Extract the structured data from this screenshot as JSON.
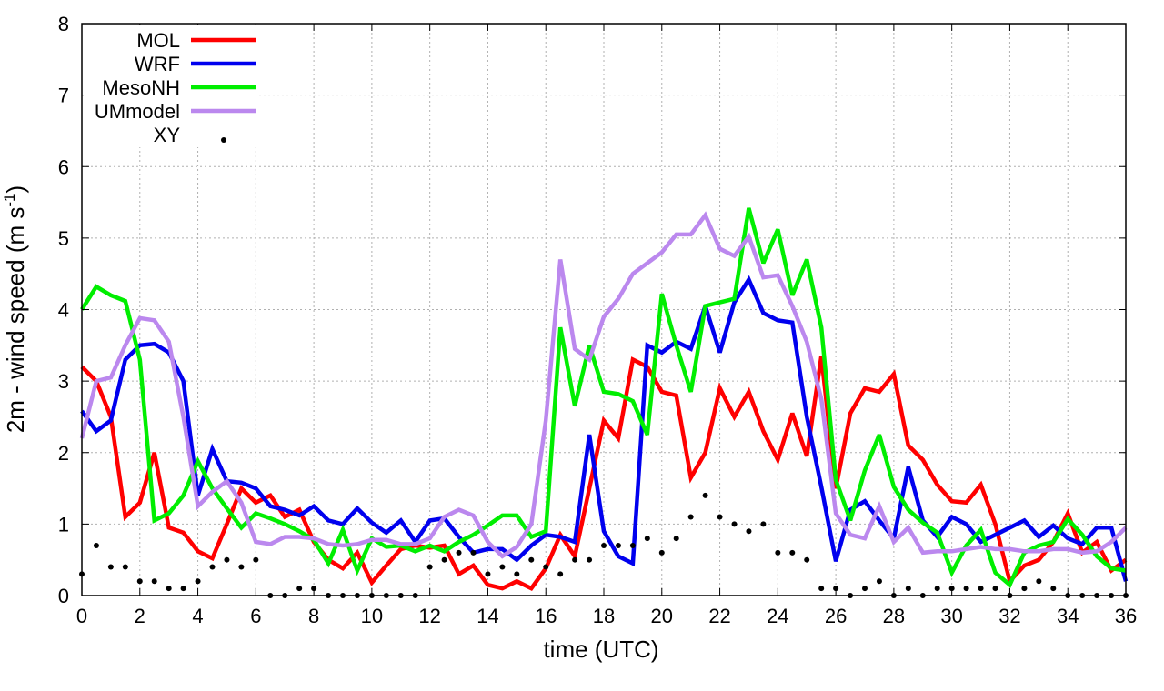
{
  "chart_data": {
    "type": "line",
    "xlabel": "time (UTC)",
    "ylabel_main": "2m - wind speed  (m s",
    "ylabel_sup": "-1",
    "ylabel_close": ")",
    "xlim": [
      0,
      36
    ],
    "ylim": [
      0,
      8
    ],
    "xticks": [
      0,
      2,
      4,
      6,
      8,
      10,
      12,
      14,
      16,
      18,
      20,
      22,
      24,
      26,
      28,
      30,
      32,
      34,
      36
    ],
    "yticks": [
      0,
      1,
      2,
      3,
      4,
      5,
      6,
      7,
      8
    ],
    "grid": true,
    "legend_position": "top-left",
    "x": [
      0,
      0.5,
      1,
      1.5,
      2,
      2.5,
      3,
      3.5,
      4,
      4.5,
      5,
      5.5,
      6,
      6.5,
      7,
      7.5,
      8,
      8.5,
      9,
      9.5,
      10,
      10.5,
      11,
      11.5,
      12,
      12.5,
      13,
      13.5,
      14,
      14.5,
      15,
      15.5,
      16,
      16.5,
      17,
      17.5,
      18,
      18.5,
      19,
      19.5,
      20,
      20.5,
      21,
      21.5,
      22,
      22.5,
      23,
      23.5,
      24,
      24.5,
      25,
      25.5,
      26,
      26.5,
      27,
      27.5,
      28,
      28.5,
      29,
      29.5,
      30,
      30.5,
      31,
      31.5,
      32,
      32.5,
      33,
      33.5,
      34,
      34.5,
      35,
      35.5,
      36
    ],
    "series": [
      {
        "name": "MOL",
        "color": "#ff0000",
        "style": "line",
        "values": [
          3.2,
          3.0,
          2.5,
          1.1,
          1.3,
          2.0,
          0.95,
          0.88,
          0.62,
          0.52,
          1.0,
          1.5,
          1.3,
          1.4,
          1.1,
          1.2,
          0.75,
          0.5,
          0.38,
          0.6,
          0.18,
          0.42,
          0.65,
          0.7,
          0.67,
          0.7,
          0.3,
          0.42,
          0.15,
          0.1,
          0.2,
          0.1,
          0.38,
          0.85,
          0.55,
          1.5,
          2.45,
          2.2,
          3.3,
          3.2,
          2.85,
          2.8,
          1.65,
          2.0,
          2.9,
          2.5,
          2.85,
          2.3,
          1.9,
          2.55,
          1.95,
          3.35,
          1.5,
          2.55,
          2.9,
          2.85,
          3.1,
          2.1,
          1.9,
          1.55,
          1.32,
          1.3,
          1.55,
          1.0,
          0.2,
          0.42,
          0.5,
          0.75,
          1.15,
          0.6,
          0.75,
          0.35,
          0.5
        ]
      },
      {
        "name": "WRF",
        "color": "#0000ee",
        "style": "line",
        "values": [
          2.58,
          2.3,
          2.45,
          3.3,
          3.5,
          3.52,
          3.4,
          3.0,
          1.4,
          2.05,
          1.6,
          1.58,
          1.5,
          1.25,
          1.2,
          1.12,
          1.25,
          1.05,
          1.0,
          1.22,
          1.02,
          0.88,
          1.05,
          0.75,
          1.05,
          1.08,
          0.82,
          0.6,
          0.65,
          0.65,
          0.5,
          0.7,
          0.85,
          0.82,
          0.75,
          2.25,
          0.9,
          0.55,
          0.45,
          3.5,
          3.4,
          3.55,
          3.45,
          4.05,
          3.4,
          4.1,
          4.42,
          3.95,
          3.85,
          3.82,
          2.5,
          1.52,
          0.48,
          1.2,
          1.32,
          1.05,
          0.8,
          1.8,
          1.05,
          0.82,
          1.1,
          1.0,
          0.75,
          0.85,
          0.95,
          1.05,
          0.82,
          0.98,
          0.8,
          0.72,
          0.95,
          0.95,
          0.2
        ]
      },
      {
        "name": "MesoNH",
        "color": "#00ee00",
        "style": "line",
        "values": [
          4.0,
          4.32,
          4.2,
          4.12,
          3.3,
          1.05,
          1.15,
          1.4,
          1.88,
          1.5,
          1.22,
          0.95,
          1.15,
          1.08,
          1.0,
          0.9,
          0.78,
          0.45,
          0.92,
          0.35,
          0.8,
          0.68,
          0.7,
          0.62,
          0.7,
          0.62,
          0.75,
          0.85,
          0.98,
          1.12,
          1.12,
          0.82,
          0.9,
          3.75,
          2.65,
          3.5,
          2.85,
          2.82,
          2.72,
          2.25,
          4.22,
          3.5,
          2.85,
          4.05,
          4.1,
          4.15,
          5.42,
          4.65,
          5.12,
          4.2,
          4.7,
          3.75,
          1.62,
          1.05,
          1.75,
          2.25,
          1.52,
          1.2,
          1.02,
          0.88,
          0.32,
          0.7,
          0.92,
          0.32,
          0.15,
          0.6,
          0.7,
          0.75,
          1.07,
          0.85,
          0.55,
          0.38,
          0.35
        ]
      },
      {
        "name": "UMmodel",
        "color": "#bb88ee",
        "style": "line",
        "values": [
          2.2,
          3.0,
          3.05,
          3.5,
          3.88,
          3.85,
          3.55,
          2.5,
          1.25,
          1.45,
          1.6,
          1.3,
          0.75,
          0.72,
          0.82,
          0.82,
          0.8,
          0.72,
          0.7,
          0.72,
          0.78,
          0.78,
          0.72,
          0.72,
          0.8,
          1.1,
          1.2,
          1.12,
          0.75,
          0.55,
          0.68,
          1.0,
          2.45,
          4.7,
          3.45,
          3.3,
          3.9,
          4.15,
          4.5,
          4.65,
          4.8,
          5.05,
          5.05,
          5.32,
          4.85,
          4.75,
          5.02,
          4.45,
          4.48,
          4.05,
          3.55,
          2.75,
          1.15,
          0.85,
          0.8,
          1.25,
          0.75,
          0.95,
          0.6,
          0.62,
          0.62,
          0.65,
          0.68,
          0.65,
          0.65,
          0.62,
          0.62,
          0.65,
          0.65,
          0.6,
          0.62,
          0.75,
          0.95
        ]
      },
      {
        "name": "XY",
        "color": "#000000",
        "style": "points",
        "values": [
          0.3,
          0.7,
          0.4,
          0.4,
          0.2,
          0.2,
          0.1,
          0.1,
          0.2,
          0.4,
          0.5,
          0.4,
          0.5,
          0.0,
          0.0,
          0.1,
          0.1,
          0.0,
          0.0,
          0.0,
          0.0,
          0.0,
          0.0,
          0.0,
          0.4,
          0.5,
          0.6,
          0.6,
          0.3,
          0.4,
          0.3,
          0.5,
          0.4,
          0.3,
          0.5,
          0.5,
          0.7,
          0.7,
          0.7,
          0.8,
          0.6,
          0.8,
          1.1,
          1.4,
          1.1,
          1.0,
          0.9,
          1.0,
          0.6,
          0.6,
          0.5,
          0.1,
          0.1,
          0.0,
          0.1,
          0.2,
          0.0,
          0.1,
          0.0,
          0.1,
          0.1,
          0.1,
          0.1,
          0.1,
          0.0,
          0.1,
          0.2,
          0.1,
          0.0,
          0.0,
          0.0,
          0.0,
          0.0
        ]
      }
    ]
  }
}
